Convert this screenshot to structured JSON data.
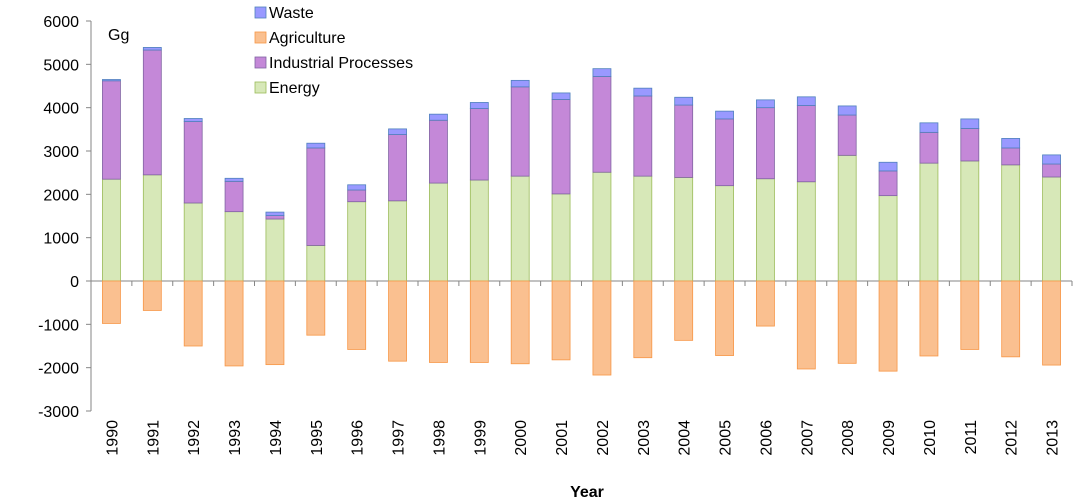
{
  "chart_data": {
    "type": "bar",
    "stacked": true,
    "unit_label": "Gg",
    "xlabel": "Year",
    "ylabel": "",
    "ylim": [
      -3000,
      6000
    ],
    "yticks": [
      -3000,
      -2000,
      -1000,
      0,
      1000,
      2000,
      3000,
      4000,
      5000,
      6000
    ],
    "grid": false,
    "legend_position": "top-left",
    "categories": [
      "1990",
      "1991",
      "1992",
      "1993",
      "1994",
      "1995",
      "1996",
      "1997",
      "1998",
      "1999",
      "2000",
      "2001",
      "2002",
      "2003",
      "2004",
      "2005",
      "2006",
      "2007",
      "2008",
      "2009",
      "2010",
      "2011",
      "2012",
      "2013"
    ],
    "series": [
      {
        "name": "Energy",
        "color": "#d7e8b8",
        "stroke": "#9bbb59",
        "values": [
          2350,
          2450,
          1800,
          1600,
          1430,
          820,
          1830,
          1850,
          2260,
          2330,
          2420,
          2010,
          2510,
          2420,
          2390,
          2200,
          2360,
          2290,
          2900,
          1970,
          2720,
          2770,
          2680,
          2400
        ]
      },
      {
        "name": "Industrial Processes",
        "color": "#c488d8",
        "stroke": "#8064a2",
        "values": [
          2270,
          2880,
          1880,
          700,
          80,
          2250,
          270,
          1530,
          1450,
          1650,
          2060,
          2180,
          2210,
          1850,
          1670,
          1540,
          1640,
          1760,
          930,
          570,
          710,
          750,
          390,
          300
        ]
      },
      {
        "name": "Agriculture",
        "color": "#fac090",
        "stroke": "#f79646",
        "values": [
          -980,
          -680,
          -1500,
          -1960,
          -1930,
          -1250,
          -1580,
          -1850,
          -1880,
          -1880,
          -1910,
          -1820,
          -2170,
          -1770,
          -1370,
          -1720,
          -1040,
          -2030,
          -1900,
          -2080,
          -1730,
          -1580,
          -1750,
          -1940
        ]
      },
      {
        "name": "Waste",
        "color": "#9999ff",
        "stroke": "#4f81bd",
        "values": [
          30,
          60,
          70,
          70,
          80,
          110,
          120,
          130,
          140,
          140,
          150,
          150,
          180,
          180,
          180,
          180,
          180,
          200,
          210,
          200,
          220,
          220,
          220,
          210
        ]
      }
    ],
    "legend_order": [
      "Waste",
      "Agriculture",
      "Industrial Processes",
      "Energy"
    ]
  }
}
